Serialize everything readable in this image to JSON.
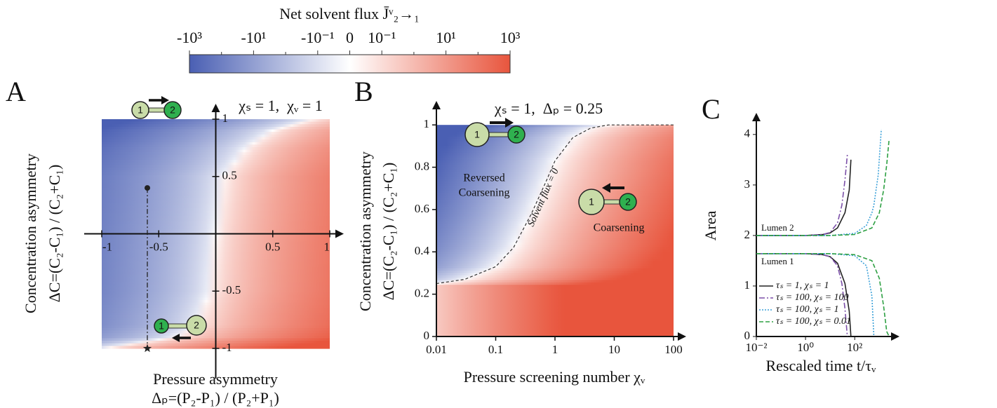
{
  "chart_data": [
    {
      "type": "colorbar",
      "title": "Net solvent flux J̄ᵛ₂→₁",
      "scale": "symlog",
      "linthresh": 0.1,
      "clim": [
        -1000,
        1000
      ],
      "colors": [
        "#4a5fb3",
        "#ffffff",
        "#e8553d"
      ],
      "xticks": [
        {
          "value": -1000,
          "label": "-10³"
        },
        {
          "value": -10,
          "label": "-10¹"
        },
        {
          "value": -0.1,
          "label": "-10⁻¹"
        },
        0,
        {
          "value": 0.1,
          "label": "10⁻¹"
        },
        {
          "value": 10,
          "label": "10¹"
        },
        {
          "value": 1000,
          "label": "10³"
        }
      ],
      "minor_ticks": [
        -100,
        -1,
        1,
        100
      ]
    },
    {
      "type": "heatmap",
      "panel": "A",
      "title": "χₛ = 1,  χᵥ = 1",
      "xlabel": [
        "Pressure asymmetry",
        "Δₚ=(P₂-P₁) / (P₂+P₁)"
      ],
      "ylabel": [
        "Concentration asymmetry",
        "ΔC=(C₂-C₁) / (C₂+C₁)"
      ],
      "xlim": [
        -1,
        1
      ],
      "ylim": [
        -1,
        1
      ],
      "xticks": [
        -1,
        -0.5,
        0.5,
        1
      ],
      "yticks": [
        -1,
        -0.5,
        0.5,
        1
      ],
      "points": [
        {
          "x": -0.6,
          "y": 0.4
        },
        {
          "x": -0.6,
          "y": -1
        }
      ],
      "lumen_labels": [
        "1",
        "2"
      ]
    },
    {
      "type": "heatmap",
      "panel": "B",
      "title": "χₛ = 1,  Δₚ = 0.25",
      "xlabel": [
        "Pressure screening number χᵥ"
      ],
      "ylabel": [
        "Concentration asymmetry",
        "ΔC=(C₂-C₁) / (C₂+C₁)"
      ],
      "xscale": "log",
      "xlim": [
        0.01,
        100
      ],
      "ylim": [
        0,
        1.1
      ],
      "xticks": [
        0.01,
        0.1,
        1,
        10,
        100
      ],
      "yticks": [
        0,
        0.2,
        0.4,
        0.6,
        0.8,
        1
      ],
      "contour": {
        "x": [
          0.01,
          0.03,
          0.1,
          0.2,
          0.4,
          0.7,
          1,
          2,
          4,
          8,
          20,
          100
        ],
        "y": [
          0.25,
          0.27,
          0.33,
          0.42,
          0.58,
          0.73,
          0.83,
          0.94,
          0.985,
          1,
          1,
          1
        ]
      },
      "annotations": [
        "Reversed",
        "Coarsening",
        "Coarsening",
        "Solvent flux = 0"
      ],
      "lumen_labels": [
        "1",
        "2"
      ]
    },
    {
      "type": "line",
      "panel": "C",
      "xlabel": "Rescaled time t/τᵥ",
      "ylabel": "Area",
      "xscale": "log",
      "xlim": [
        0.01,
        3000
      ],
      "ylim": [
        0,
        4.4
      ],
      "xticks": [
        {
          "value": 0.01,
          "label": "10⁻²"
        },
        {
          "value": 1,
          "label": "10⁰"
        },
        {
          "value": 100,
          "label": "10²"
        }
      ],
      "yticks": [
        0,
        1,
        2,
        3,
        4
      ],
      "annotations": [
        "Lumen 2",
        "Lumen 1"
      ],
      "series": [
        {
          "name": "τₛ = 1, χₛ = 1",
          "color": "#222222",
          "dash": "none",
          "x": [
            0.01,
            0.1,
            1,
            5,
            10,
            20,
            40,
            60,
            70
          ],
          "lumen2": [
            2,
            2,
            2,
            2.02,
            2.05,
            2.15,
            2.45,
            2.9,
            3.5
          ],
          "lumen1": [
            1.64,
            1.64,
            1.64,
            1.62,
            1.58,
            1.45,
            1.05,
            0.5,
            0
          ]
        },
        {
          "name": "τₛ = 100, χₛ = 100",
          "color": "#7b4fa8",
          "dash": "8 3 2 3",
          "x": [
            0.01,
            0.1,
            1,
            5,
            10,
            20,
            30,
            40,
            50
          ],
          "lumen2": [
            2,
            2,
            2,
            2.02,
            2.06,
            2.25,
            2.6,
            3.1,
            3.6
          ],
          "lumen1": [
            1.64,
            1.64,
            1.64,
            1.62,
            1.58,
            1.4,
            1.05,
            0.55,
            0
          ]
        },
        {
          "name": "τₛ = 100, χₛ = 1",
          "color": "#3aa0d8",
          "dash": "2 2",
          "x": [
            0.01,
            1,
            10,
            100,
            300,
            500,
            600,
            900,
            1200
          ],
          "lumen2": [
            2,
            2,
            2,
            2.04,
            2.2,
            2.45,
            2.6,
            3.2,
            4.1
          ],
          "lumen1": [
            1.64,
            1.64,
            1.64,
            1.6,
            1.4,
            0.8,
            0,
            null,
            null
          ]
        },
        {
          "name": "τₛ = 100, χₛ = 0.01",
          "color": "#2ea043",
          "dash": "6 3",
          "x": [
            0.01,
            1,
            10,
            100,
            500,
            1000,
            1500,
            2000,
            2500
          ],
          "lumen2": [
            2,
            2,
            2,
            2.02,
            2.15,
            2.45,
            2.9,
            3.4,
            3.9
          ],
          "lumen1": [
            1.64,
            1.64,
            1.64,
            1.62,
            1.5,
            1.15,
            0.6,
            0.1,
            0
          ]
        }
      ]
    }
  ]
}
